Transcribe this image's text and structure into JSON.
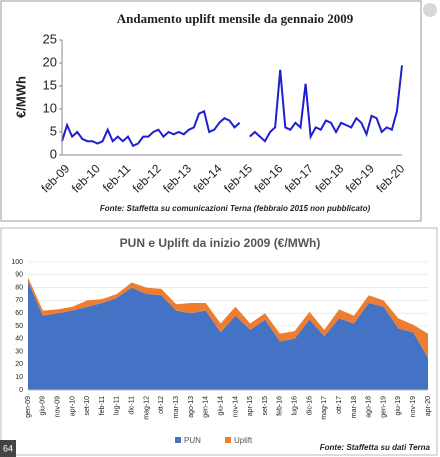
{
  "badge": "64",
  "chart_data": [
    {
      "type": "line",
      "title": "Andamento uplift mensile da gennaio 2009",
      "y_label": "€/MWh",
      "note": "Fonte: Staffetta su comunicazioni Terna (febbraio 2015 non pubblicato)",
      "color": "#1f1fd0",
      "grid": false,
      "categories": [
        "feb-09",
        null,
        null,
        null,
        null,
        null,
        "feb-10",
        null,
        null,
        null,
        null,
        null,
        "feb-11",
        null,
        null,
        null,
        null,
        null,
        "feb-12",
        null,
        null,
        null,
        null,
        null,
        "feb-13",
        null,
        null,
        null,
        null,
        null,
        "feb-14",
        null,
        null,
        null,
        null,
        null,
        "feb-15",
        null,
        null,
        null,
        null,
        null,
        "feb-16",
        null,
        null,
        null,
        null,
        null,
        "feb-17",
        null,
        null,
        null,
        null,
        null,
        "feb-18",
        null,
        null,
        null,
        null,
        null,
        "feb-19",
        null,
        null,
        null,
        null,
        null,
        "feb-20",
        null
      ],
      "values": [
        3,
        6.5,
        4,
        5,
        3.5,
        3,
        3,
        2.5,
        3,
        5.5,
        3,
        4,
        3,
        4,
        2,
        2.5,
        4,
        4,
        5,
        5.5,
        4,
        5,
        4.5,
        5,
        4.5,
        5.5,
        6,
        9,
        9.5,
        5,
        5.5,
        7,
        8,
        7.5,
        6,
        7,
        null,
        4,
        5,
        4,
        3,
        5,
        6,
        18.5,
        6,
        5.5,
        7,
        6,
        15.5,
        4,
        6,
        5.5,
        7.5,
        7,
        5,
        7,
        6.5,
        6,
        8,
        7,
        4.5,
        8.5,
        8,
        5,
        6,
        5.5,
        9.5,
        19.5
      ],
      "ylim": [
        0,
        25
      ],
      "yticks": [
        0,
        5,
        10,
        15,
        20,
        25
      ]
    },
    {
      "type": "stacked_area",
      "title": "PUN e Uplift da inizio 2009 (€/MWh)",
      "note": "Fonte: Staffetta su dati Terna",
      "grid": true,
      "categories": [
        "gen-09",
        "giu-09",
        "nov-09",
        "apr-10",
        "set-10",
        "feb-11",
        "lug-11",
        "dic-11",
        "mag-12",
        "ott-12",
        "mar-13",
        "ago-13",
        "gen-14",
        "giu-14",
        "nov-14",
        "apr-15",
        "set-15",
        "feb-16",
        "lug-16",
        "dic-16",
        "mag-17",
        "ott-17",
        "mar-18",
        "ago-18",
        "gen-19",
        "giu-19",
        "nov-19",
        "apr-20"
      ],
      "series": [
        {
          "name": "PUN",
          "color": "#4472c4",
          "values": [
            85,
            58,
            60,
            62,
            65,
            68,
            72,
            80,
            75,
            74,
            62,
            60,
            62,
            45,
            58,
            47,
            55,
            38,
            40,
            55,
            42,
            56,
            52,
            68,
            65,
            48,
            45,
            25
          ]
        },
        {
          "name": "Uplift",
          "color": "#ed7d31",
          "values": [
            3,
            4,
            3,
            3,
            5,
            3,
            3,
            4,
            5,
            5,
            5,
            8,
            6,
            7,
            7,
            5,
            5,
            6,
            6,
            6,
            5,
            7,
            6,
            6,
            5,
            8,
            6,
            19
          ]
        }
      ],
      "ylim": [
        0,
        100
      ],
      "yticks": [
        0,
        10,
        20,
        30,
        40,
        50,
        60,
        70,
        80,
        90,
        100
      ]
    }
  ]
}
